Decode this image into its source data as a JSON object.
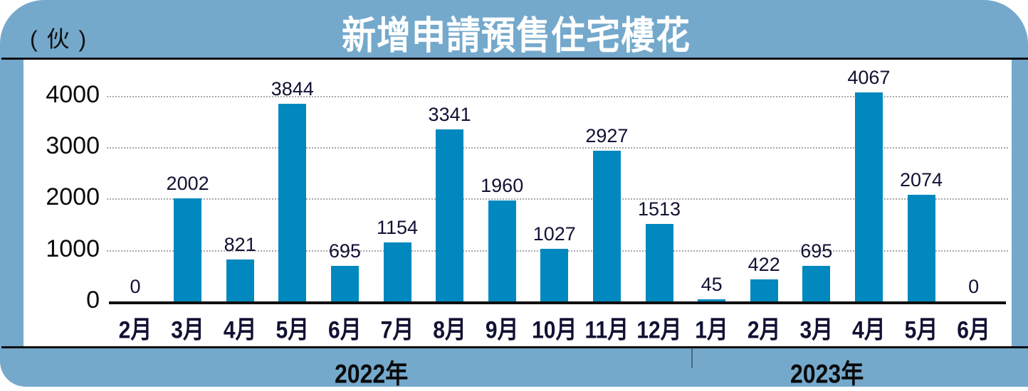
{
  "header": {
    "title": "新增申請預售住宅樓花",
    "unit": "( 伙 )"
  },
  "colors": {
    "frame": "#74a9cc",
    "bar": "#0088bf",
    "text": "#111133"
  },
  "y_ticks": [
    "4000",
    "3000",
    "2000",
    "1000",
    "0"
  ],
  "years": [
    {
      "label": "2022年"
    },
    {
      "label": "2023年"
    }
  ],
  "chart_data": {
    "type": "bar",
    "title": "新增申請預售住宅樓花",
    "ylabel": "(伙)",
    "xlabel": "",
    "ylim": [
      0,
      4000
    ],
    "yticks": [
      0,
      1000,
      2000,
      3000,
      4000
    ],
    "grid": "horizontal dotted",
    "legend": "none",
    "categories": [
      "2月",
      "3月",
      "4月",
      "5月",
      "6月",
      "7月",
      "8月",
      "9月",
      "10月",
      "11月",
      "12月",
      "1月",
      "2月",
      "3月",
      "4月",
      "5月",
      "6月"
    ],
    "category_groups": [
      {
        "label": "2022年",
        "range": [
          0,
          10
        ]
      },
      {
        "label": "2023年",
        "range": [
          11,
          16
        ]
      }
    ],
    "values": [
      0,
      2002,
      821,
      3844,
      695,
      1154,
      3341,
      1960,
      1027,
      2927,
      1513,
      45,
      422,
      695,
      4067,
      2074,
      0
    ],
    "value_labels": [
      "0",
      "2002",
      "821",
      "3844",
      "695",
      "1154",
      "3341",
      "1960",
      "1027",
      "2927",
      "1513",
      "45",
      "422",
      "695",
      "4067",
      "2074",
      "0"
    ]
  }
}
